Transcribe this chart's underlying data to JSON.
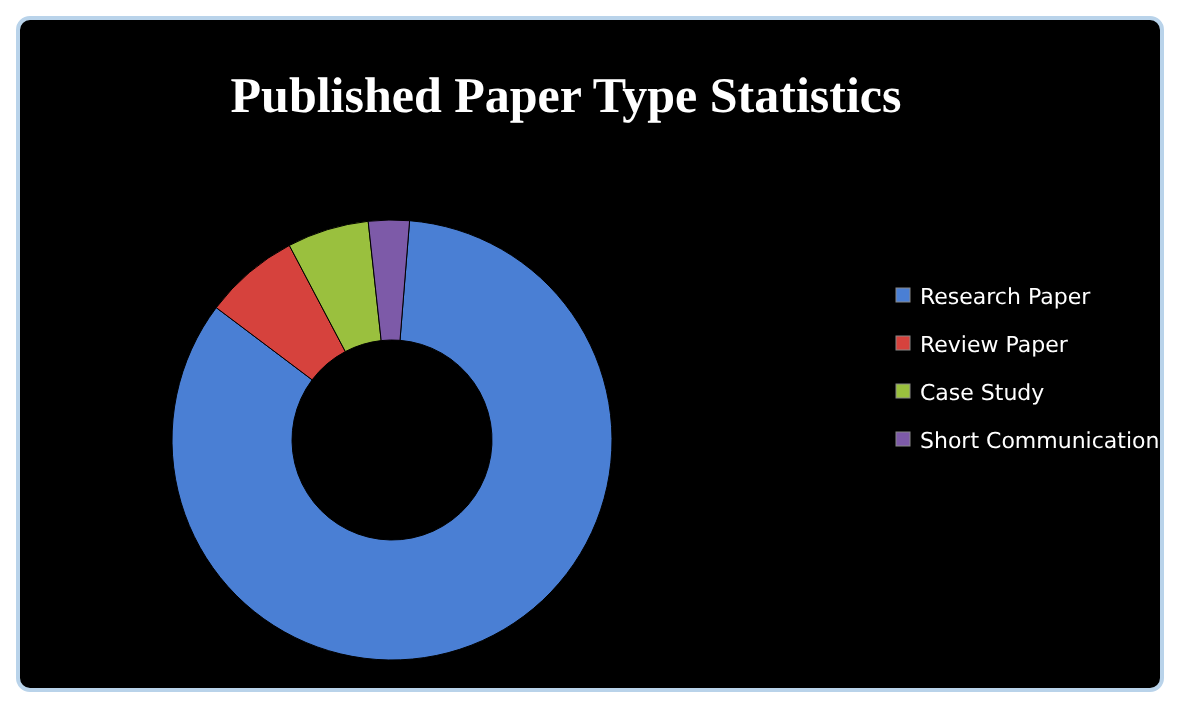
{
  "chart_data": {
    "type": "donut",
    "title": "Published Paper Type Statistics",
    "categories": [
      "Research Paper",
      "Review Paper",
      "Case Study",
      "Short Communication"
    ],
    "values": [
      84,
      7,
      6,
      3
    ],
    "colors": [
      "#4a7fd4",
      "#d6423d",
      "#9ac03e",
      "#7d5aa8"
    ],
    "legend": "right"
  }
}
